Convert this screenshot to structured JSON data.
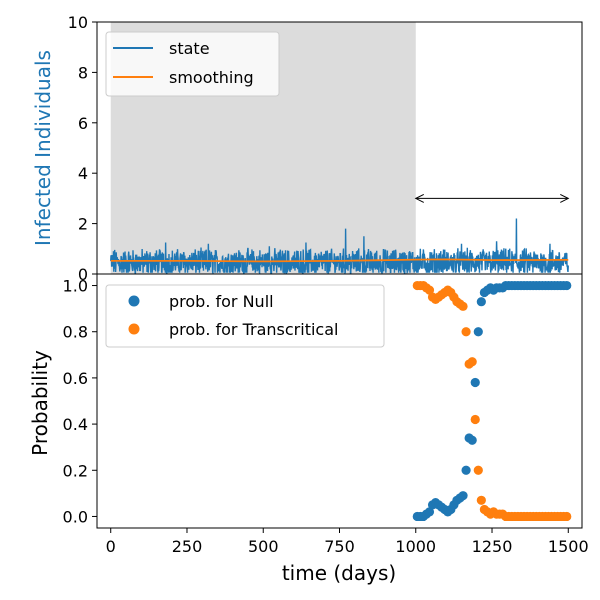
{
  "chart_data": [
    {
      "type": "line",
      "title": "",
      "xlabel": "",
      "ylabel": "Infected Individuals",
      "ylabel_color": "#1f77b4",
      "xlim": [
        -45,
        1545
      ],
      "ylim": [
        0,
        10
      ],
      "yticks": [
        0,
        2,
        4,
        6,
        8,
        10
      ],
      "grid": false,
      "legend": "top-left",
      "shaded_region": {
        "x": [
          0,
          1000
        ],
        "color": "#dcdcdc"
      },
      "arrow": {
        "x": [
          1000,
          1500
        ],
        "y": 3,
        "style": "double-headed"
      },
      "series": [
        {
          "name": "state",
          "color": "#1f77b4",
          "style": "noisy fluctuation",
          "x_range": [
            0,
            1500
          ],
          "mean": 0.45,
          "band": [
            0.05,
            1.25
          ],
          "spikes": [
            [
              180,
              1.25
            ],
            [
              320,
              1.2
            ],
            [
              520,
              1.1
            ],
            [
              640,
              1.25
            ],
            [
              770,
              1.8
            ],
            [
              830,
              1.5
            ],
            [
              1150,
              1.2
            ],
            [
              1265,
              1.3
            ],
            [
              1330,
              2.2
            ],
            [
              1440,
              1.2
            ]
          ]
        },
        {
          "name": "smoothing",
          "color": "#ff7f0e",
          "x": [
            0,
            250,
            500,
            750,
            1000,
            1100,
            1250,
            1500
          ],
          "y": [
            0.52,
            0.52,
            0.5,
            0.52,
            0.57,
            0.58,
            0.55,
            0.56
          ]
        }
      ]
    },
    {
      "type": "scatter",
      "title": "",
      "xlabel": "time (days)",
      "ylabel": "Probability",
      "xlim": [
        -45,
        1545
      ],
      "ylim": [
        -0.05,
        1.05
      ],
      "xticks": [
        0,
        250,
        500,
        750,
        1000,
        1250,
        1500
      ],
      "yticks": [
        0.0,
        0.2,
        0.4,
        0.6,
        0.8,
        1.0
      ],
      "grid": false,
      "legend": "top-left",
      "series": [
        {
          "name": "prob. for Null",
          "color": "#1f77b4",
          "x": [
            1005,
            1015,
            1025,
            1035,
            1045,
            1055,
            1065,
            1075,
            1085,
            1095,
            1105,
            1115,
            1125,
            1135,
            1145,
            1155,
            1165,
            1175,
            1185,
            1195,
            1205,
            1215,
            1225,
            1235,
            1245,
            1255,
            1265,
            1275,
            1285,
            1295,
            1305,
            1315,
            1325,
            1335,
            1345,
            1355,
            1365,
            1375,
            1385,
            1395,
            1405,
            1415,
            1425,
            1435,
            1445,
            1455,
            1465,
            1475,
            1485,
            1495
          ],
          "y": [
            0.0,
            0.0,
            0.0,
            0.01,
            0.02,
            0.05,
            0.06,
            0.05,
            0.04,
            0.03,
            0.02,
            0.03,
            0.05,
            0.07,
            0.08,
            0.09,
            0.2,
            0.34,
            0.33,
            0.58,
            0.8,
            0.93,
            0.97,
            0.98,
            0.99,
            0.98,
            0.99,
            0.99,
            0.99,
            1.0,
            1.0,
            1.0,
            1.0,
            1.0,
            1.0,
            1.0,
            1.0,
            1.0,
            1.0,
            1.0,
            1.0,
            1.0,
            1.0,
            1.0,
            1.0,
            1.0,
            1.0,
            1.0,
            1.0,
            1.0
          ]
        },
        {
          "name": "prob. for Transcritical",
          "color": "#ff7f0e",
          "x": [
            1005,
            1015,
            1025,
            1035,
            1045,
            1055,
            1065,
            1075,
            1085,
            1095,
            1105,
            1115,
            1125,
            1135,
            1145,
            1155,
            1165,
            1175,
            1185,
            1195,
            1205,
            1215,
            1225,
            1235,
            1245,
            1255,
            1265,
            1275,
            1285,
            1295,
            1305,
            1315,
            1325,
            1335,
            1345,
            1355,
            1365,
            1375,
            1385,
            1395,
            1405,
            1415,
            1425,
            1435,
            1445,
            1455,
            1465,
            1475,
            1485,
            1495
          ],
          "y": [
            1.0,
            1.0,
            1.0,
            0.99,
            0.98,
            0.95,
            0.94,
            0.95,
            0.96,
            0.97,
            0.98,
            0.97,
            0.95,
            0.93,
            0.92,
            0.91,
            0.8,
            0.66,
            0.67,
            0.42,
            0.2,
            0.07,
            0.03,
            0.02,
            0.01,
            0.02,
            0.01,
            0.01,
            0.01,
            0.0,
            0.0,
            0.0,
            0.0,
            0.0,
            0.0,
            0.0,
            0.0,
            0.0,
            0.0,
            0.0,
            0.0,
            0.0,
            0.0,
            0.0,
            0.0,
            0.0,
            0.0,
            0.0,
            0.0,
            0.0
          ]
        }
      ]
    }
  ]
}
